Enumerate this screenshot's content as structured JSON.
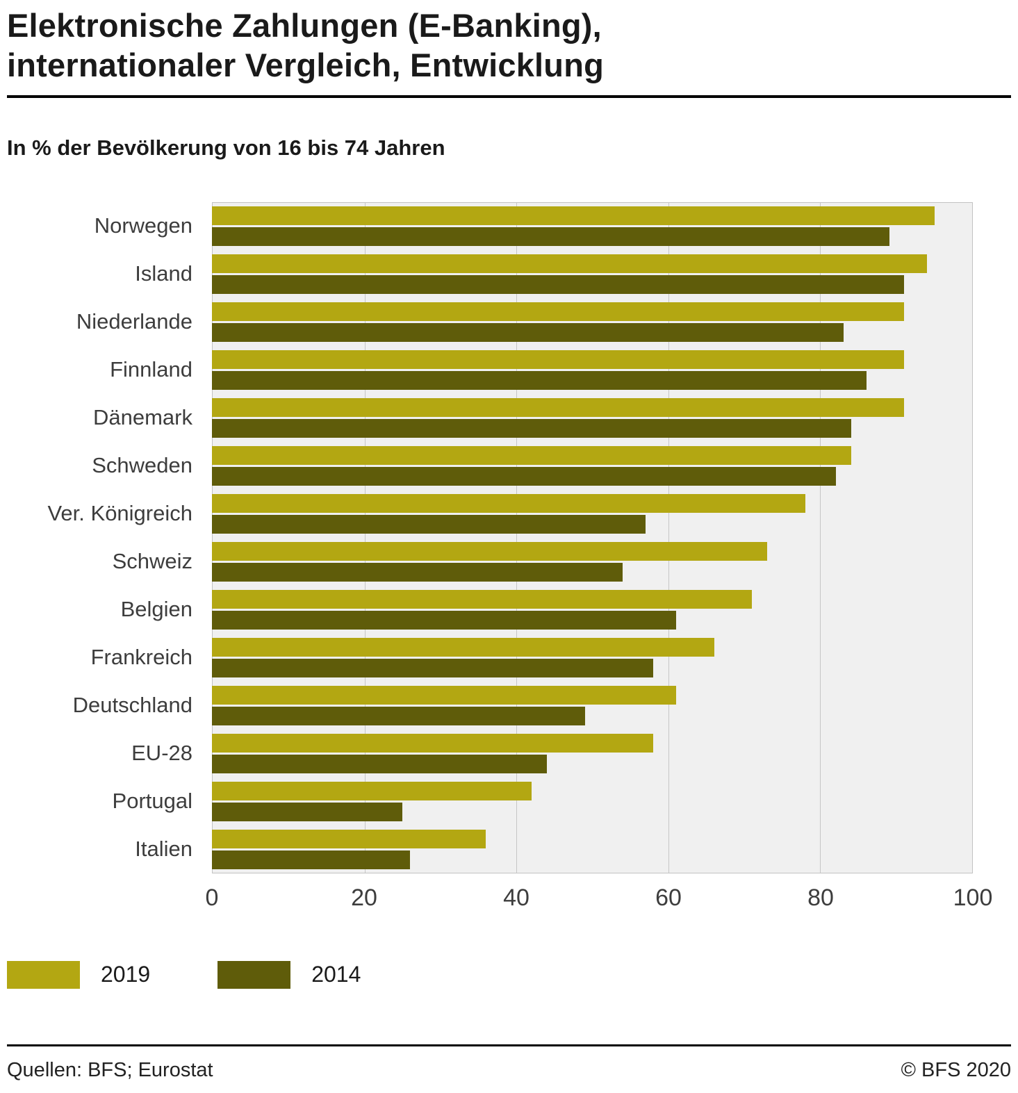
{
  "header": {
    "title_line1": "Elektronische Zahlungen (E-Banking),",
    "title_line2": "internationaler Vergleich, Entwicklung",
    "subtitle": "In % der Bevölkerung von 16 bis 74 Jahren"
  },
  "chart_data": {
    "type": "bar",
    "orientation": "horizontal",
    "title": "Elektronische Zahlungen (E-Banking), internationaler Vergleich, Entwicklung",
    "subtitle": "In % der Bevölkerung von 16 bis 74 Jahren",
    "categories": [
      "Norwegen",
      "Island",
      "Niederlande",
      "Finnland",
      "Dänemark",
      "Schweden",
      "Ver. Königreich",
      "Schweiz",
      "Belgien",
      "Frankreich",
      "Deutschland",
      "EU-28",
      "Portugal",
      "Italien"
    ],
    "series": [
      {
        "name": "2019",
        "color": "#b3a712",
        "values": [
          95,
          94,
          91,
          91,
          91,
          84,
          78,
          73,
          71,
          66,
          61,
          58,
          42,
          36
        ]
      },
      {
        "name": "2014",
        "color": "#5f5c0a",
        "values": [
          89,
          91,
          83,
          86,
          84,
          82,
          57,
          54,
          61,
          58,
          49,
          44,
          25,
          26
        ]
      }
    ],
    "xlim": [
      0,
      100
    ],
    "xticks": [
      0,
      20,
      40,
      60,
      80,
      100
    ],
    "grid": true,
    "plot_background": "#f0f0f0",
    "grid_color": "#c6c6c6",
    "legend_position": "bottom",
    "xlabel": "",
    "ylabel": ""
  },
  "legend": {
    "items": [
      {
        "label": "2019",
        "color": "#b3a712"
      },
      {
        "label": "2014",
        "color": "#5f5c0a"
      }
    ]
  },
  "footer": {
    "source": "Quellen: BFS; Eurostat",
    "copyright": "© BFS 2020"
  }
}
